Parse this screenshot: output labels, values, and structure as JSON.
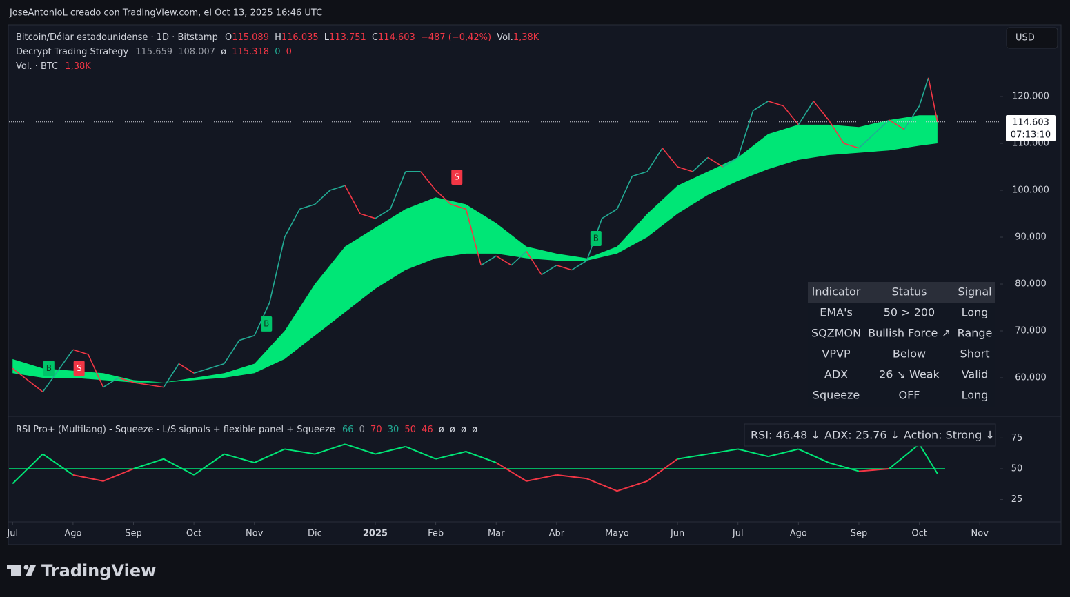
{
  "header": {
    "credit": "JoseAntonioL creado con TradingView.com, el Oct 13, 2025 16:46 UTC",
    "currency": "USD"
  },
  "legend": {
    "symbol": "Bitcoin/Dólar estadounidense · 1D · Bitstamp",
    "o_label": "O",
    "open": "115.089",
    "h_label": "H",
    "high": "116.035",
    "l_label": "L",
    "low": "113.751",
    "c_label": "C",
    "close": "114.603",
    "change": "−487 (−0,42%)",
    "vol_label": "Vol.",
    "vol": "1,38K",
    "strategy_name": "Decrypt Trading Strategy",
    "strategy_values": [
      "115.659",
      "108.007",
      "ø",
      "115.318",
      "0",
      "0"
    ],
    "volume_name": "Vol. · BTC",
    "volume_value": "1,38K"
  },
  "price_label": {
    "price": "114.603",
    "countdown": "07:13:10"
  },
  "panel": {
    "headers": [
      "Indicator",
      "Status",
      "Signal"
    ],
    "rows": [
      [
        "EMA's",
        "50 > 200",
        "Long"
      ],
      [
        "SQZMON",
        "Bullish Force ↗",
        "Range"
      ],
      [
        "VPVP",
        "Below",
        "Short"
      ],
      [
        "ADX",
        "26 ↘ Weak",
        "Valid"
      ],
      [
        "Squeeze",
        "OFF",
        "Long"
      ]
    ]
  },
  "rsi_legend": {
    "name": "RSI Pro+ (Multilang) - Squeeze - L/S signals + flexible panel + Squeeze",
    "values": [
      "66",
      "0",
      "70",
      "30",
      "50",
      "46",
      "ø",
      "ø",
      "ø",
      "ø"
    ]
  },
  "rsi_status": [
    "RSI: 46.48 ↓",
    "ADX: 25.76 ↓",
    "Action: Strong ↓"
  ],
  "brand": "TradingView",
  "chart_data": [
    {
      "type": "price",
      "x": [
        0,
        0.5,
        1,
        1.25,
        1.5,
        1.75,
        2,
        2.5,
        2.75,
        3,
        3.5,
        3.75,
        4,
        4.25,
        4.5,
        4.75,
        5,
        5.25,
        5.5,
        5.75,
        6,
        6.25,
        6.5,
        6.75,
        7,
        7.25,
        7.5,
        7.75,
        8,
        8.25,
        8.5,
        8.75,
        9,
        9.25,
        9.5,
        9.75,
        10,
        10.25,
        10.5,
        10.75,
        11,
        11.25,
        11.5,
        11.75,
        12,
        12.25,
        12.5,
        12.75,
        13,
        13.25,
        13.5,
        13.75,
        14,
        14.25,
        14.5,
        14.75,
        15,
        15.15,
        15.3
      ],
      "values": [
        62000,
        57000,
        66000,
        65000,
        58000,
        60000,
        59000,
        58000,
        63000,
        61000,
        63000,
        68000,
        69000,
        76000,
        90000,
        96000,
        97000,
        100000,
        101000,
        95000,
        94000,
        96000,
        104000,
        104000,
        100000,
        97000,
        96000,
        84000,
        86000,
        84000,
        87000,
        82000,
        84000,
        83000,
        85000,
        94000,
        96000,
        103000,
        104000,
        109000,
        105000,
        104000,
        107000,
        105000,
        107000,
        117000,
        119000,
        118000,
        114000,
        119000,
        115000,
        110000,
        109000,
        112000,
        115000,
        113000,
        118000,
        124000,
        114603
      ],
      "up_color": "#22ab94",
      "down_color": "#f23645",
      "band": {
        "x": [
          0,
          0.5,
          1,
          1.5,
          2,
          2.5,
          3,
          3.5,
          4,
          4.5,
          5,
          5.5,
          6,
          6.5,
          7,
          7.5,
          8,
          8.5,
          9,
          9.5,
          10,
          10.5,
          11,
          11.5,
          12,
          12.5,
          13,
          13.5,
          14,
          14.5,
          15,
          15.3
        ],
        "upper": [
          64000,
          62000,
          61500,
          61000,
          59500,
          59000,
          60000,
          61000,
          63000,
          70000,
          80000,
          88000,
          92000,
          96000,
          98500,
          97000,
          93000,
          88000,
          86500,
          85500,
          88000,
          95000,
          101000,
          104000,
          107000,
          112000,
          114000,
          114000,
          113500,
          115000,
          116000,
          116000
        ],
        "lower": [
          61000,
          60000,
          60000,
          59500,
          59000,
          59000,
          59500,
          60000,
          61000,
          64000,
          69000,
          74000,
          79000,
          83000,
          85500,
          86500,
          86500,
          85500,
          85000,
          85000,
          86500,
          90000,
          95000,
          99000,
          102000,
          104500,
          106500,
          107500,
          108000,
          108500,
          109500,
          110000
        ],
        "color": "#00e676"
      },
      "signals": {
        "x": [
          0.6,
          1.1,
          4.2,
          7.35,
          9.65
        ],
        "values": [
          62000,
          62000,
          71500,
          102800,
          89700
        ],
        "labels": [
          "B",
          "S",
          "B",
          "S",
          "B"
        ],
        "buy_color": "#00c46a",
        "sell_color": "#f23645"
      },
      "xlim": [
        -0.06,
        16.34
      ],
      "xticks": [
        {
          "value": 0,
          "label": "Jul"
        },
        {
          "value": 1,
          "label": "Ago"
        },
        {
          "value": 2,
          "label": "Sep"
        },
        {
          "value": 3,
          "label": "Oct"
        },
        {
          "value": 4,
          "label": "Nov"
        },
        {
          "value": 5,
          "label": "Dic"
        },
        {
          "value": 6,
          "label": "2025"
        },
        {
          "value": 7,
          "label": "Feb"
        },
        {
          "value": 8,
          "label": "Mar"
        },
        {
          "value": 9,
          "label": "Abr"
        },
        {
          "value": 10,
          "label": "Mayo"
        },
        {
          "value": 11,
          "label": "Jun"
        },
        {
          "value": 12,
          "label": "Jul"
        },
        {
          "value": 13,
          "label": "Ago"
        },
        {
          "value": 14,
          "label": "Sep"
        },
        {
          "value": 15,
          "label": "Oct"
        },
        {
          "value": 16,
          "label": "Nov"
        }
      ],
      "ylim": [
        52060,
        135300
      ],
      "yticks": [
        {
          "value": 60000,
          "label": "60.000"
        },
        {
          "value": 70000,
          "label": "70.000"
        },
        {
          "value": 80000,
          "label": "80.000"
        },
        {
          "value": 90000,
          "label": "90.000"
        },
        {
          "value": 100000,
          "label": "100.000"
        },
        {
          "value": 110000,
          "label": "110.000"
        },
        {
          "value": 120000,
          "label": "120.000"
        }
      ]
    },
    {
      "type": "rsi",
      "x": [
        0,
        0.5,
        1,
        1.5,
        2,
        2.5,
        3,
        3.5,
        4,
        4.5,
        5,
        5.5,
        6,
        6.5,
        7,
        7.5,
        8,
        8.5,
        9,
        9.5,
        10,
        10.5,
        11,
        11.5,
        12,
        12.5,
        13,
        13.5,
        14,
        14.5,
        15,
        15.3
      ],
      "values": [
        38,
        62,
        45,
        40,
        50,
        58,
        45,
        62,
        55,
        66,
        62,
        70,
        62,
        68,
        58,
        64,
        55,
        40,
        45,
        42,
        32,
        40,
        58,
        62,
        66,
        60,
        66,
        55,
        48,
        50,
        70,
        46
      ],
      "midline": 50,
      "up_color": "#00e676",
      "down_color": "#f23645",
      "xlim": [
        -0.06,
        16.34
      ],
      "ylim": [
        8,
        92
      ],
      "yticks": [
        25,
        50,
        75
      ]
    }
  ]
}
